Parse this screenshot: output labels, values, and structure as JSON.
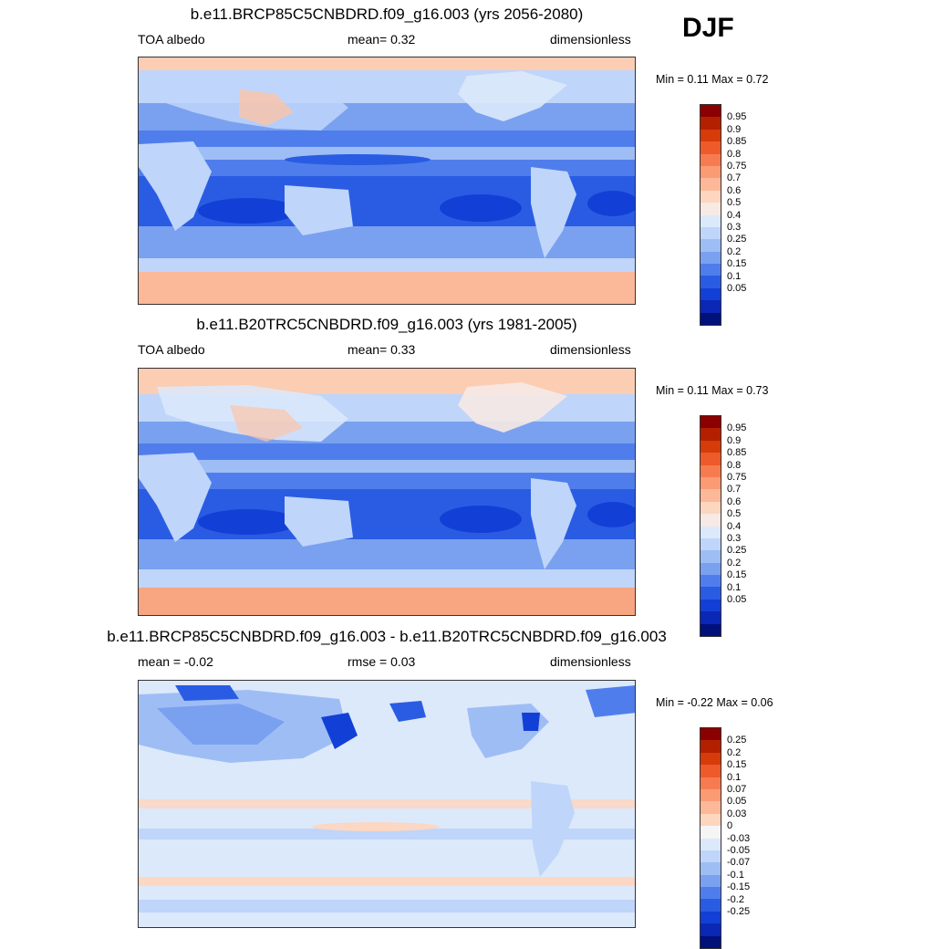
{
  "season": "DJF",
  "panels": [
    {
      "title": "b.e11.BRCP85C5CNBDRD.f09_g16.003 (yrs 2056-2080)",
      "left_label": "TOA albedo",
      "center_label": "mean=   0.32",
      "right_label": "dimensionless",
      "minmax": "Min =    0.11 Max =    0.72",
      "colorbar": {
        "colors": [
          "#8b0000",
          "#b22000",
          "#d63b0a",
          "#ef5a2a",
          "#f77b50",
          "#fb9b74",
          "#fcb899",
          "#fdd6bf",
          "#f7e9e4",
          "#dce9fb",
          "#bfd5fa",
          "#9fbdf5",
          "#7aa1f0",
          "#4f7eec",
          "#2a5ce3",
          "#1240d6",
          "#0a27b5",
          "#00117a"
        ],
        "labels": [
          "0.95",
          "0.9",
          "0.85",
          "0.8",
          "0.75",
          "0.7",
          "0.6",
          "0.5",
          "0.4",
          "0.3",
          "0.25",
          "0.2",
          "0.15",
          "0.1",
          "0.05"
        ]
      }
    },
    {
      "title": "b.e11.B20TRC5CNBDRD.f09_g16.003 (yrs 1981-2005)",
      "left_label": "TOA albedo",
      "center_label": "mean=   0.33",
      "right_label": "dimensionless",
      "minmax": "Min =    0.11 Max =    0.73",
      "colorbar": {
        "colors": [
          "#8b0000",
          "#b22000",
          "#d63b0a",
          "#ef5a2a",
          "#f77b50",
          "#fb9b74",
          "#fcb899",
          "#fdd6bf",
          "#f7e9e4",
          "#dce9fb",
          "#bfd5fa",
          "#9fbdf5",
          "#7aa1f0",
          "#4f7eec",
          "#2a5ce3",
          "#1240d6",
          "#0a27b5",
          "#00117a"
        ],
        "labels": [
          "0.95",
          "0.9",
          "0.85",
          "0.8",
          "0.75",
          "0.7",
          "0.6",
          "0.5",
          "0.4",
          "0.3",
          "0.25",
          "0.2",
          "0.15",
          "0.1",
          "0.05"
        ]
      }
    },
    {
      "title": "b.e11.BRCP85C5CNBDRD.f09_g16.003 - b.e11.B20TRC5CNBDRD.f09_g16.003",
      "left_label": "mean =  -0.02",
      "center_label": "rmse =   0.03",
      "right_label": "dimensionless",
      "minmax": "Min =   -0.22 Max =    0.06",
      "colorbar": {
        "colors": [
          "#8b0000",
          "#b22000",
          "#d63b0a",
          "#ef5a2a",
          "#f77b50",
          "#fb9b74",
          "#fcb899",
          "#fdd6bf",
          "#f5f5f5",
          "#dce9fb",
          "#bfd5fa",
          "#9fbdf5",
          "#7aa1f0",
          "#4f7eec",
          "#2a5ce3",
          "#1240d6",
          "#0a27b5",
          "#00117a"
        ],
        "labels": [
          "0.25",
          "0.2",
          "0.15",
          "0.1",
          "0.07",
          "0.05",
          "0.03",
          "0",
          "-0.03",
          "-0.05",
          "-0.07",
          "-0.1",
          "-0.15",
          "-0.2",
          "-0.25"
        ]
      }
    }
  ]
}
